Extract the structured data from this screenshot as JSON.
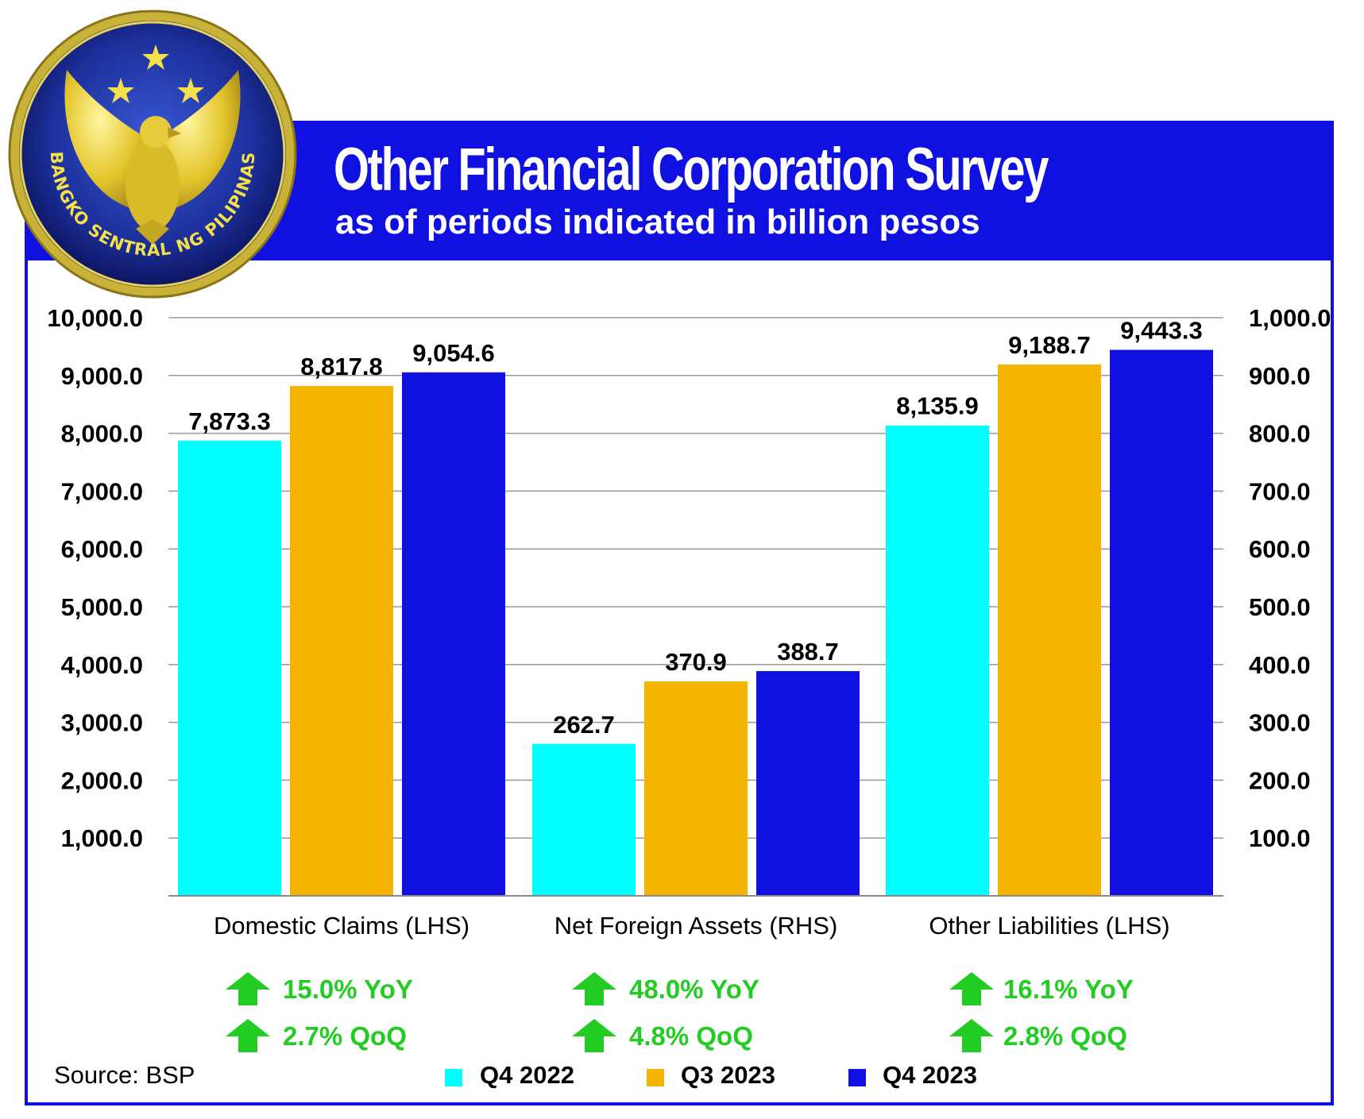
{
  "header": {
    "title": "Other Financial Corporation Survey",
    "subtitle": "as of periods indicated in billion pesos"
  },
  "logo": {
    "text": "BANGKO SENTRAL NG PILIPINAS"
  },
  "colors": {
    "banner": "#1010e0",
    "q4_2022": "#00ffff",
    "q3_2023": "#f5b400",
    "q4_2023": "#1010e0",
    "change_green": "#22cc22"
  },
  "chart_data": {
    "type": "bar",
    "title": "Other Financial Corporation Survey",
    "subtitle": "as of periods indicated in billion pesos",
    "categories": [
      "Domestic Claims (LHS)",
      "Net Foreign Assets (RHS)",
      "Other Liabilities (LHS)"
    ],
    "category_axis": [
      "left",
      "right",
      "left"
    ],
    "series": [
      {
        "name": "Q4 2022",
        "color": "#00ffff",
        "values": [
          7873.3,
          262.7,
          8135.9
        ],
        "labels": [
          "7,873.3",
          "262.7",
          "8,135.9"
        ]
      },
      {
        "name": "Q3 2023",
        "color": "#f5b400",
        "values": [
          8817.8,
          370.9,
          9188.7
        ],
        "labels": [
          "8,817.8",
          "370.9",
          "9,188.7"
        ]
      },
      {
        "name": "Q4 2023",
        "color": "#1010e0",
        "values": [
          9054.6,
          388.7,
          9443.3
        ],
        "labels": [
          "9,054.6",
          "388.7",
          "9,443.3"
        ]
      }
    ],
    "left_axis": {
      "ylim": [
        0,
        10000
      ],
      "ticks": [
        "1,000.0",
        "2,000.0",
        "3,000.0",
        "4,000.0",
        "5,000.0",
        "6,000.0",
        "7,000.0",
        "8,000.0",
        "9,000.0",
        "10,000.0"
      ]
    },
    "right_axis": {
      "ylim": [
        0,
        1000
      ],
      "ticks": [
        "100.0",
        "200.0",
        "300.0",
        "400.0",
        "500.0",
        "600.0",
        "700.0",
        "800.0",
        "900.0",
        "1,000.0"
      ]
    },
    "grid": true,
    "legend_position": "bottom",
    "annotations": [
      {
        "category": "Domestic Claims (LHS)",
        "yoy": "15.0% YoY",
        "qoq": "2.7% QoQ"
      },
      {
        "category": "Net Foreign Assets (RHS)",
        "yoy": "48.0% YoY",
        "qoq": "4.8% QoQ"
      },
      {
        "category": "Other Liabilities (LHS)",
        "yoy": "16.1% YoY",
        "qoq": "2.8% QoQ"
      }
    ]
  },
  "footer": {
    "source": "Source: BSP",
    "legend": [
      "Q4 2022",
      "Q3 2023",
      "Q4 2023"
    ]
  }
}
